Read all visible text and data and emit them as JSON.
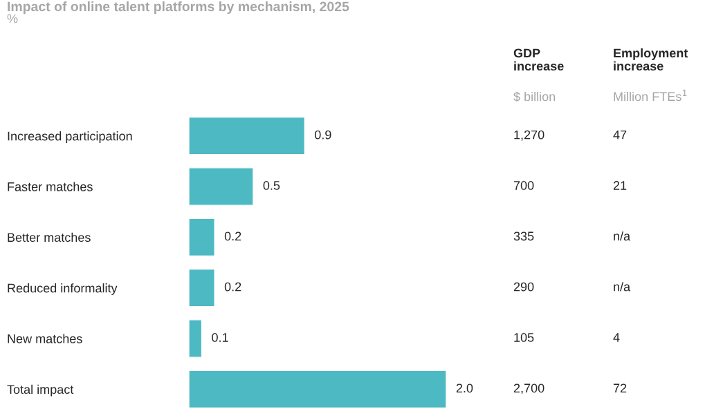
{
  "chart_data": {
    "type": "bar",
    "orientation": "horizontal",
    "title": "Impact of online talent platforms by mechanism, 2025",
    "subtitle": "%",
    "categories": [
      "Increased participation",
      "Faster matches",
      "Better matches",
      "Reduced informality",
      "New matches",
      "Total impact"
    ],
    "values": [
      0.9,
      0.5,
      0.2,
      0.2,
      0.1,
      2.0
    ],
    "color": "#4db9c2",
    "value_labels": [
      "0.9",
      "0.5",
      "0.2",
      "0.2",
      "0.1",
      "2.0"
    ],
    "tick_labels": "y",
    "grid": false,
    "legend": false,
    "annotations": [
      "GDP\nincrease",
      "$ billion",
      "Employment\nincrease",
      "Million FTEs$^{1}$",
      "1,270",
      "47",
      "700",
      "21",
      "335",
      "n/a",
      "290",
      "n/a",
      "105",
      "4",
      "2,700",
      "72"
    ]
  }
}
